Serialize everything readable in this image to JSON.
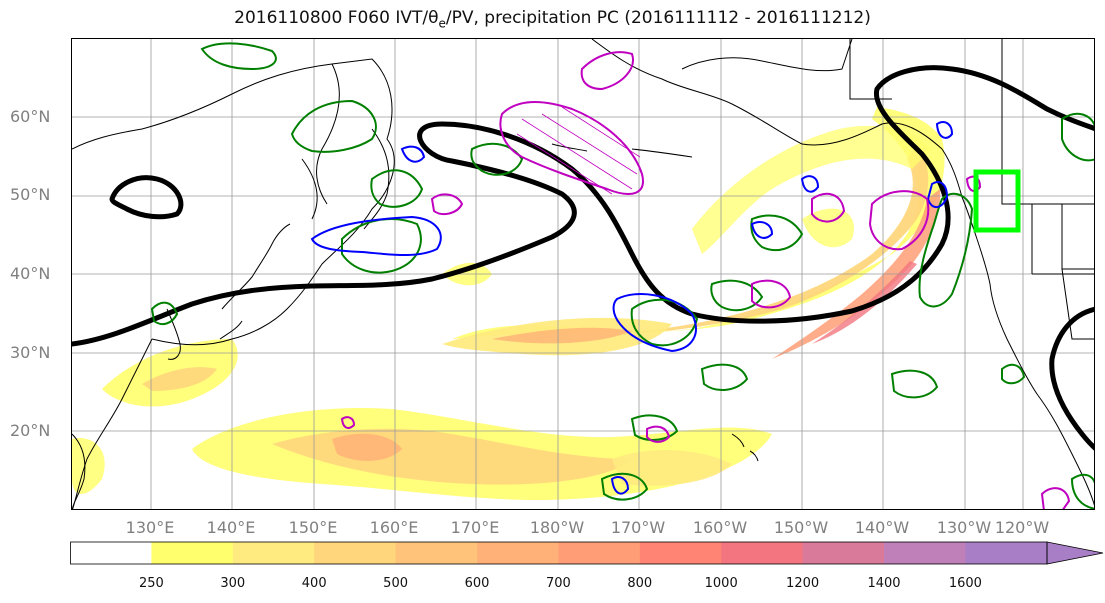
{
  "title": {
    "prefix": "2016110800 F060 IVT/",
    "theta": "θ",
    "theta_sub": "e",
    "suffix": "/PV, precipitation PC (2016111112 - 2016111212)"
  },
  "axes": {
    "lat_labels": [
      "60°N",
      "50°N",
      "40°N",
      "30°N",
      "20°N"
    ],
    "lon_labels": [
      "130°E",
      "140°E",
      "150°E",
      "160°E",
      "170°E",
      "180°W",
      "170°W",
      "160°W",
      "150°W",
      "140°W",
      "130°W",
      "120°W"
    ]
  },
  "colorbar": {
    "levels": [
      "250",
      "300",
      "400",
      "500",
      "600",
      "700",
      "800",
      "1000",
      "1200",
      "1400",
      "1600"
    ],
    "colors": [
      "#ffffff",
      "#ffff6e",
      "#ffeb7f",
      "#ffd67c",
      "#ffc47a",
      "#ffb177",
      "#ff9e76",
      "#ff8474",
      "#f27580",
      "#d97a9a",
      "#bf7fb8",
      "#a87fc6"
    ]
  },
  "legend_colors": {
    "jet_contour": "#000000",
    "theta_e_contour": "#008000",
    "pv_contour": "#0000ff",
    "precip_pc_contour": "#c000c0",
    "target_box": "#00ff00",
    "coastline": "#000000"
  }
}
